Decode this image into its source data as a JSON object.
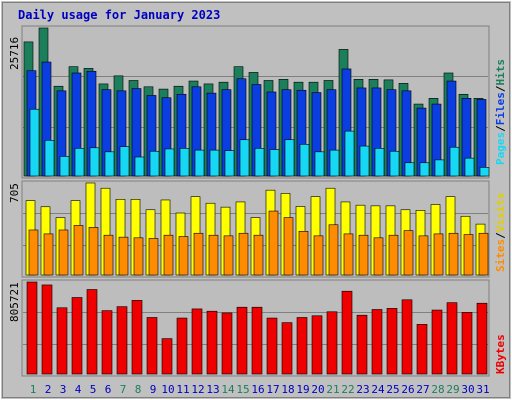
{
  "colors": {
    "background": "#c0c0c0",
    "plot_bg": "#bdbdbd",
    "gridline": "#808080",
    "title": "#0000c0",
    "hits": "#1c7f5c",
    "files": "#0a3ee0",
    "pages": "#16d8f5",
    "visits": "#ffff00",
    "sites": "#ff8c00",
    "kbytes": "#ee0000",
    "weekend_day": "#1c7f5c",
    "weekday": "#0000c0"
  },
  "chart_data": {
    "type": "bar",
    "title": "Daily usage for January 2023",
    "categories": [
      "1",
      "2",
      "3",
      "4",
      "5",
      "6",
      "7",
      "8",
      "9",
      "10",
      "11",
      "12",
      "13",
      "14",
      "15",
      "16",
      "17",
      "18",
      "19",
      "20",
      "21",
      "22",
      "23",
      "24",
      "25",
      "26",
      "27",
      "28",
      "29",
      "30",
      "31"
    ],
    "weekend_days": [
      "1",
      "7",
      "8",
      "14",
      "15",
      "21",
      "22",
      "28",
      "29"
    ],
    "panels": [
      {
        "name": "requests",
        "ymax_label": "25716",
        "ylim": [
          0,
          25716
        ],
        "axis_labels": [
          "Pages",
          "/",
          "Files",
          "/",
          "Hits"
        ],
        "series": [
          {
            "name": "Hits",
            "color_key": "hits",
            "values": [
              23300,
              25716,
              15600,
              19000,
              18700,
              16000,
              17400,
              16600,
              15500,
              15100,
              15600,
              16500,
              16000,
              16300,
              19000,
              18000,
              16600,
              16800,
              16300,
              16300,
              16600,
              22000,
              16800,
              16800,
              16700,
              16100,
              12500,
              13500,
              17900,
              14200,
              13500
            ]
          },
          {
            "name": "Files",
            "color_key": "files",
            "values": [
              18300,
              19800,
              14800,
              17900,
              18200,
              15000,
              14800,
              15200,
              14000,
              13600,
              14200,
              15500,
              14400,
              15000,
              16900,
              15900,
              14600,
              15000,
              14900,
              14500,
              15000,
              18600,
              15300,
              15300,
              15000,
              14800,
              11800,
              12500,
              16500,
              13500,
              13300
            ]
          },
          {
            "name": "Pages",
            "color_key": "pages",
            "values": [
              11600,
              6200,
              3400,
              4800,
              4900,
              4200,
              5100,
              3300,
              4300,
              4700,
              4800,
              4500,
              4500,
              4400,
              6300,
              4800,
              4600,
              6300,
              5500,
              4200,
              4500,
              7800,
              5200,
              4800,
              4300,
              2300,
              2300,
              2800,
              5000,
              3100,
              1500
            ]
          }
        ]
      },
      {
        "name": "visitors",
        "ymax_label": "705",
        "ylim": [
          0,
          705
        ],
        "axis_labels": [
          "Sites",
          "/",
          "Visits"
        ],
        "series": [
          {
            "name": "Visits",
            "color_key": "visits",
            "values": [
              570,
              523,
              440,
              570,
              705,
              665,
              580,
              580,
              500,
              575,
              475,
              600,
              550,
              520,
              560,
              440,
              650,
              625,
              525,
              600,
              665,
              560,
              535,
              530,
              530,
              500,
              495,
              540,
              600,
              450,
              390
            ]
          },
          {
            "name": "Sites",
            "color_key": "sites",
            "values": [
              345,
              315,
              345,
              380,
              365,
              305,
              290,
              285,
              280,
              305,
              295,
              320,
              305,
              300,
              320,
              305,
              490,
              440,
              335,
              300,
              385,
              315,
              305,
              285,
              305,
              340,
              300,
              315,
              320,
              310,
              320
            ]
          }
        ]
      },
      {
        "name": "kbytes",
        "ymax_label": "805721",
        "ylim": [
          0,
          805721
        ],
        "axis_labels": [
          "KBytes"
        ],
        "series": [
          {
            "name": "KBytes",
            "color_key": "kbytes",
            "values": [
              805721,
              780000,
              580000,
              670000,
              740000,
              555000,
              590000,
              645000,
              495000,
              310000,
              490000,
              570000,
              550000,
              535000,
              585000,
              585000,
              490000,
              450000,
              495000,
              510000,
              545000,
              725000,
              515000,
              565000,
              575000,
              650000,
              435000,
              560000,
              625000,
              540000,
              620000
            ]
          }
        ]
      }
    ]
  }
}
